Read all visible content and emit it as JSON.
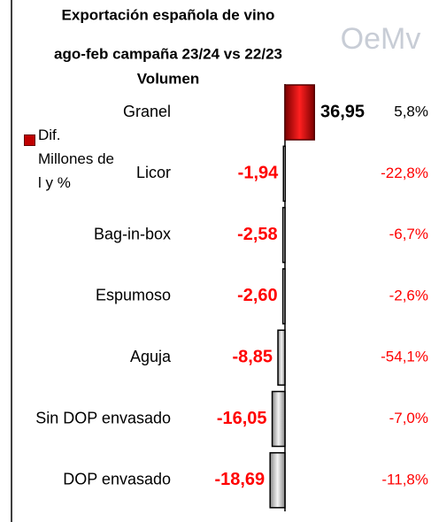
{
  "chart_data": {
    "type": "hbar",
    "title": "Exportación española de vino",
    "subtitle": "ago-feb campaña 23/24 vs 22/23",
    "measure": "Volumen",
    "logo": "OeMv",
    "categories": [
      "Granel",
      "Licor",
      "Bag-in-box",
      "Espumoso",
      "Aguja",
      "Sin DOP envasado",
      "DOP envasado"
    ],
    "series": [
      {
        "name": "Dif. Millones de l y %",
        "color": "#c00000",
        "negative_color": "#dddddd",
        "values": [
          36.95,
          -1.94,
          -2.58,
          -2.6,
          -8.85,
          -16.05,
          -18.69
        ],
        "value_labels": [
          "36,95",
          "-1,94",
          "-2,58",
          "-2,60",
          "-8,85",
          "-16,05",
          "-18,69"
        ]
      }
    ],
    "percent_labels": [
      "5,8%",
      "-22,8%",
      "-6,7%",
      "-2,6%",
      "-54,1%",
      "-7,0%",
      "-11,8%"
    ],
    "xlim": [
      -20,
      40
    ]
  }
}
